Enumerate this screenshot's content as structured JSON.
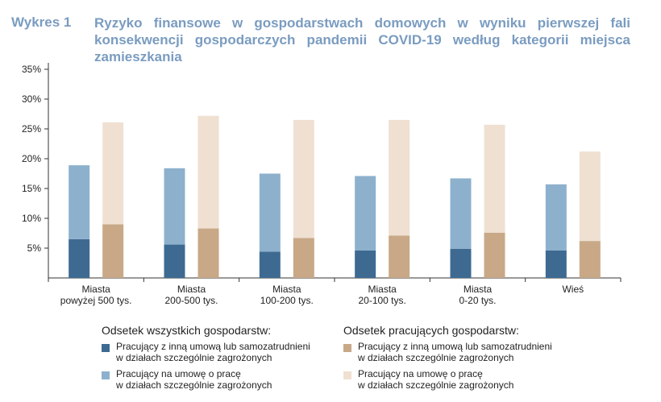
{
  "header": {
    "label": "Wykres 1",
    "title": "Ryzyko finansowe w gospodarstwach domowych w wyniku pierwszej fali konsekwencji gospodarczych pandemii COVID-19 według kategorii miejsca zamieszkania"
  },
  "chart_data": {
    "type": "bar",
    "stacked": true,
    "categories": [
      [
        "Miasta",
        "powyżej 500 tys."
      ],
      [
        "Miasta",
        "200-500 tys."
      ],
      [
        "Miasta",
        "100-200 tys."
      ],
      [
        "Miasta",
        "20-100 tys."
      ],
      [
        "Miasta",
        "0-20 tys."
      ],
      [
        "Wieś"
      ]
    ],
    "yticks": [
      "5%",
      "10%",
      "15%",
      "20%",
      "25%",
      "30%",
      "35%"
    ],
    "ylim": [
      0,
      35
    ],
    "groups": [
      {
        "name": "Odsetek wszystkich gospodarstw:",
        "series": [
          {
            "name": "Pracujący z inną umową lub samozatrudnieni w działach szczególnie zagrożonych",
            "color": "#3e6a92",
            "values": [
              6.5,
              5.6,
              4.4,
              4.6,
              4.9,
              4.6
            ]
          },
          {
            "name": "Pracujący na umowę o pracę w działach szczególnie zagrożonych",
            "color": "#8db1cd",
            "values": [
              12.4,
              12.8,
              13.1,
              12.5,
              11.8,
              11.1
            ]
          }
        ]
      },
      {
        "name": "Odsetek pracujących gospodarstw:",
        "series": [
          {
            "name": "Pracujący z inną umową lub samozatrudnieni w działach szczególnie zagrożonych",
            "color": "#c8a887",
            "values": [
              9.0,
              8.3,
              6.7,
              7.1,
              7.6,
              6.2
            ]
          },
          {
            "name": "Pracujący na umowę o pracę w działach szczególnie zagrożonych",
            "color": "#efe0d2",
            "values": [
              17.1,
              18.9,
              19.8,
              19.4,
              18.1,
              15.0
            ]
          }
        ]
      }
    ],
    "legend": {
      "group_a_title": "Odsetek wszystkich gospodarstw:",
      "group_a_item1_line1": "Pracujący z inną umową lub samozatrudnieni",
      "group_a_item1_line2": "w działach szczególnie zagrożonych",
      "group_a_item2_line1": "Pracujący na umowę o pracę",
      "group_a_item2_line2": "w działach szczególnie zagrożonych",
      "group_b_title": "Odsetek pracujących gospodarstw:",
      "group_b_item1_line1": "Pracujący z inną umową lub samozatrudnieni",
      "group_b_item1_line2": "w działach szczególnie zagrożonych",
      "group_b_item2_line1": "Pracujący na umowę o pracę",
      "group_b_item2_line2": "w działach szczególnie zagrożonych"
    }
  }
}
